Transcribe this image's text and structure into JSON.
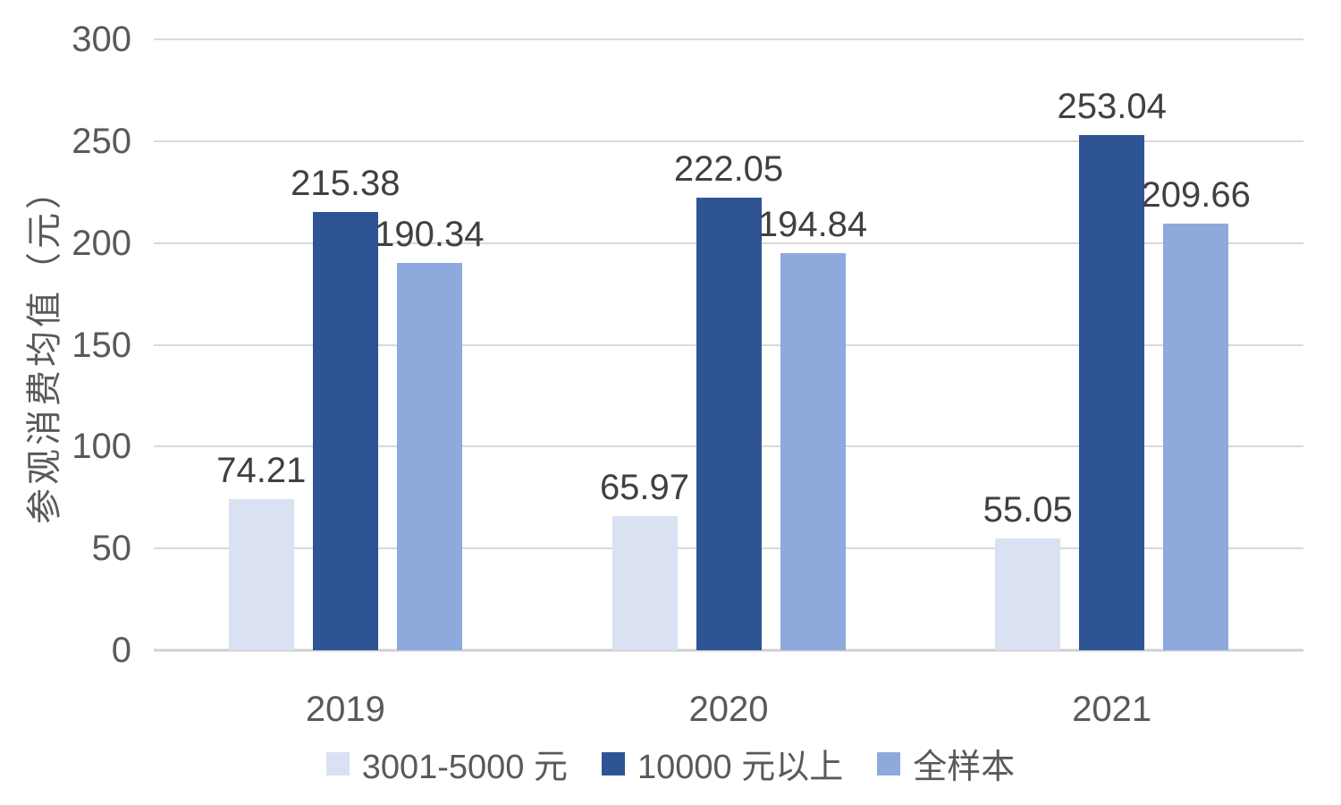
{
  "chart_data": {
    "type": "bar",
    "title": "",
    "xlabel": "",
    "ylabel": "参观消费均值（元）",
    "categories": [
      "2019",
      "2020",
      "2021"
    ],
    "series": [
      {
        "name": "3001-5000 元",
        "color": "#D9E1F2",
        "values": [
          74.21,
          65.97,
          55.05
        ]
      },
      {
        "name": "10000 元以上",
        "color": "#2E5494",
        "values": [
          215.38,
          222.05,
          253.04
        ]
      },
      {
        "name": "全样本",
        "color": "#8EAADC",
        "values": [
          190.34,
          194.84,
          209.66
        ]
      }
    ],
    "data_labels": [
      "74.21",
      "215.38",
      "190.34",
      "65.97",
      "222.05",
      "194.84",
      "55.05",
      "253.04",
      "209.66"
    ],
    "ylim": [
      0,
      300
    ],
    "yticks": [
      0,
      50,
      100,
      150,
      200,
      250,
      300
    ],
    "grid": true,
    "legend_position": "bottom"
  },
  "style": {
    "grid_color": "#D9D9D9",
    "axis_line_color": "#D0D0D0",
    "tick_text_color": "#595959",
    "data_label_color": "#404040",
    "background": "#FFFFFF"
  }
}
